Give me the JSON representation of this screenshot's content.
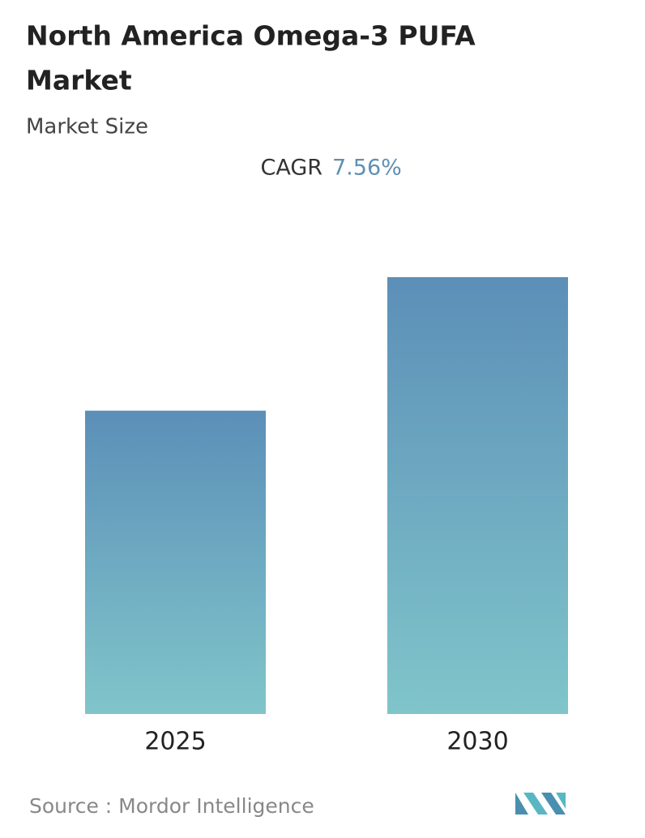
{
  "chart_data": {
    "type": "bar",
    "title": [
      "North America Omega-3 PUFA",
      "Market"
    ],
    "subtitle": "Market Size",
    "cagr_label": "CAGR",
    "cagr_value": "7.56%",
    "categories": [
      "2025",
      "2030"
    ],
    "values": [
      100,
      144
    ],
    "gradient": [
      "#5c8fb8",
      "#80c5ca"
    ],
    "source": "Source :  Mordor Intelligence"
  }
}
